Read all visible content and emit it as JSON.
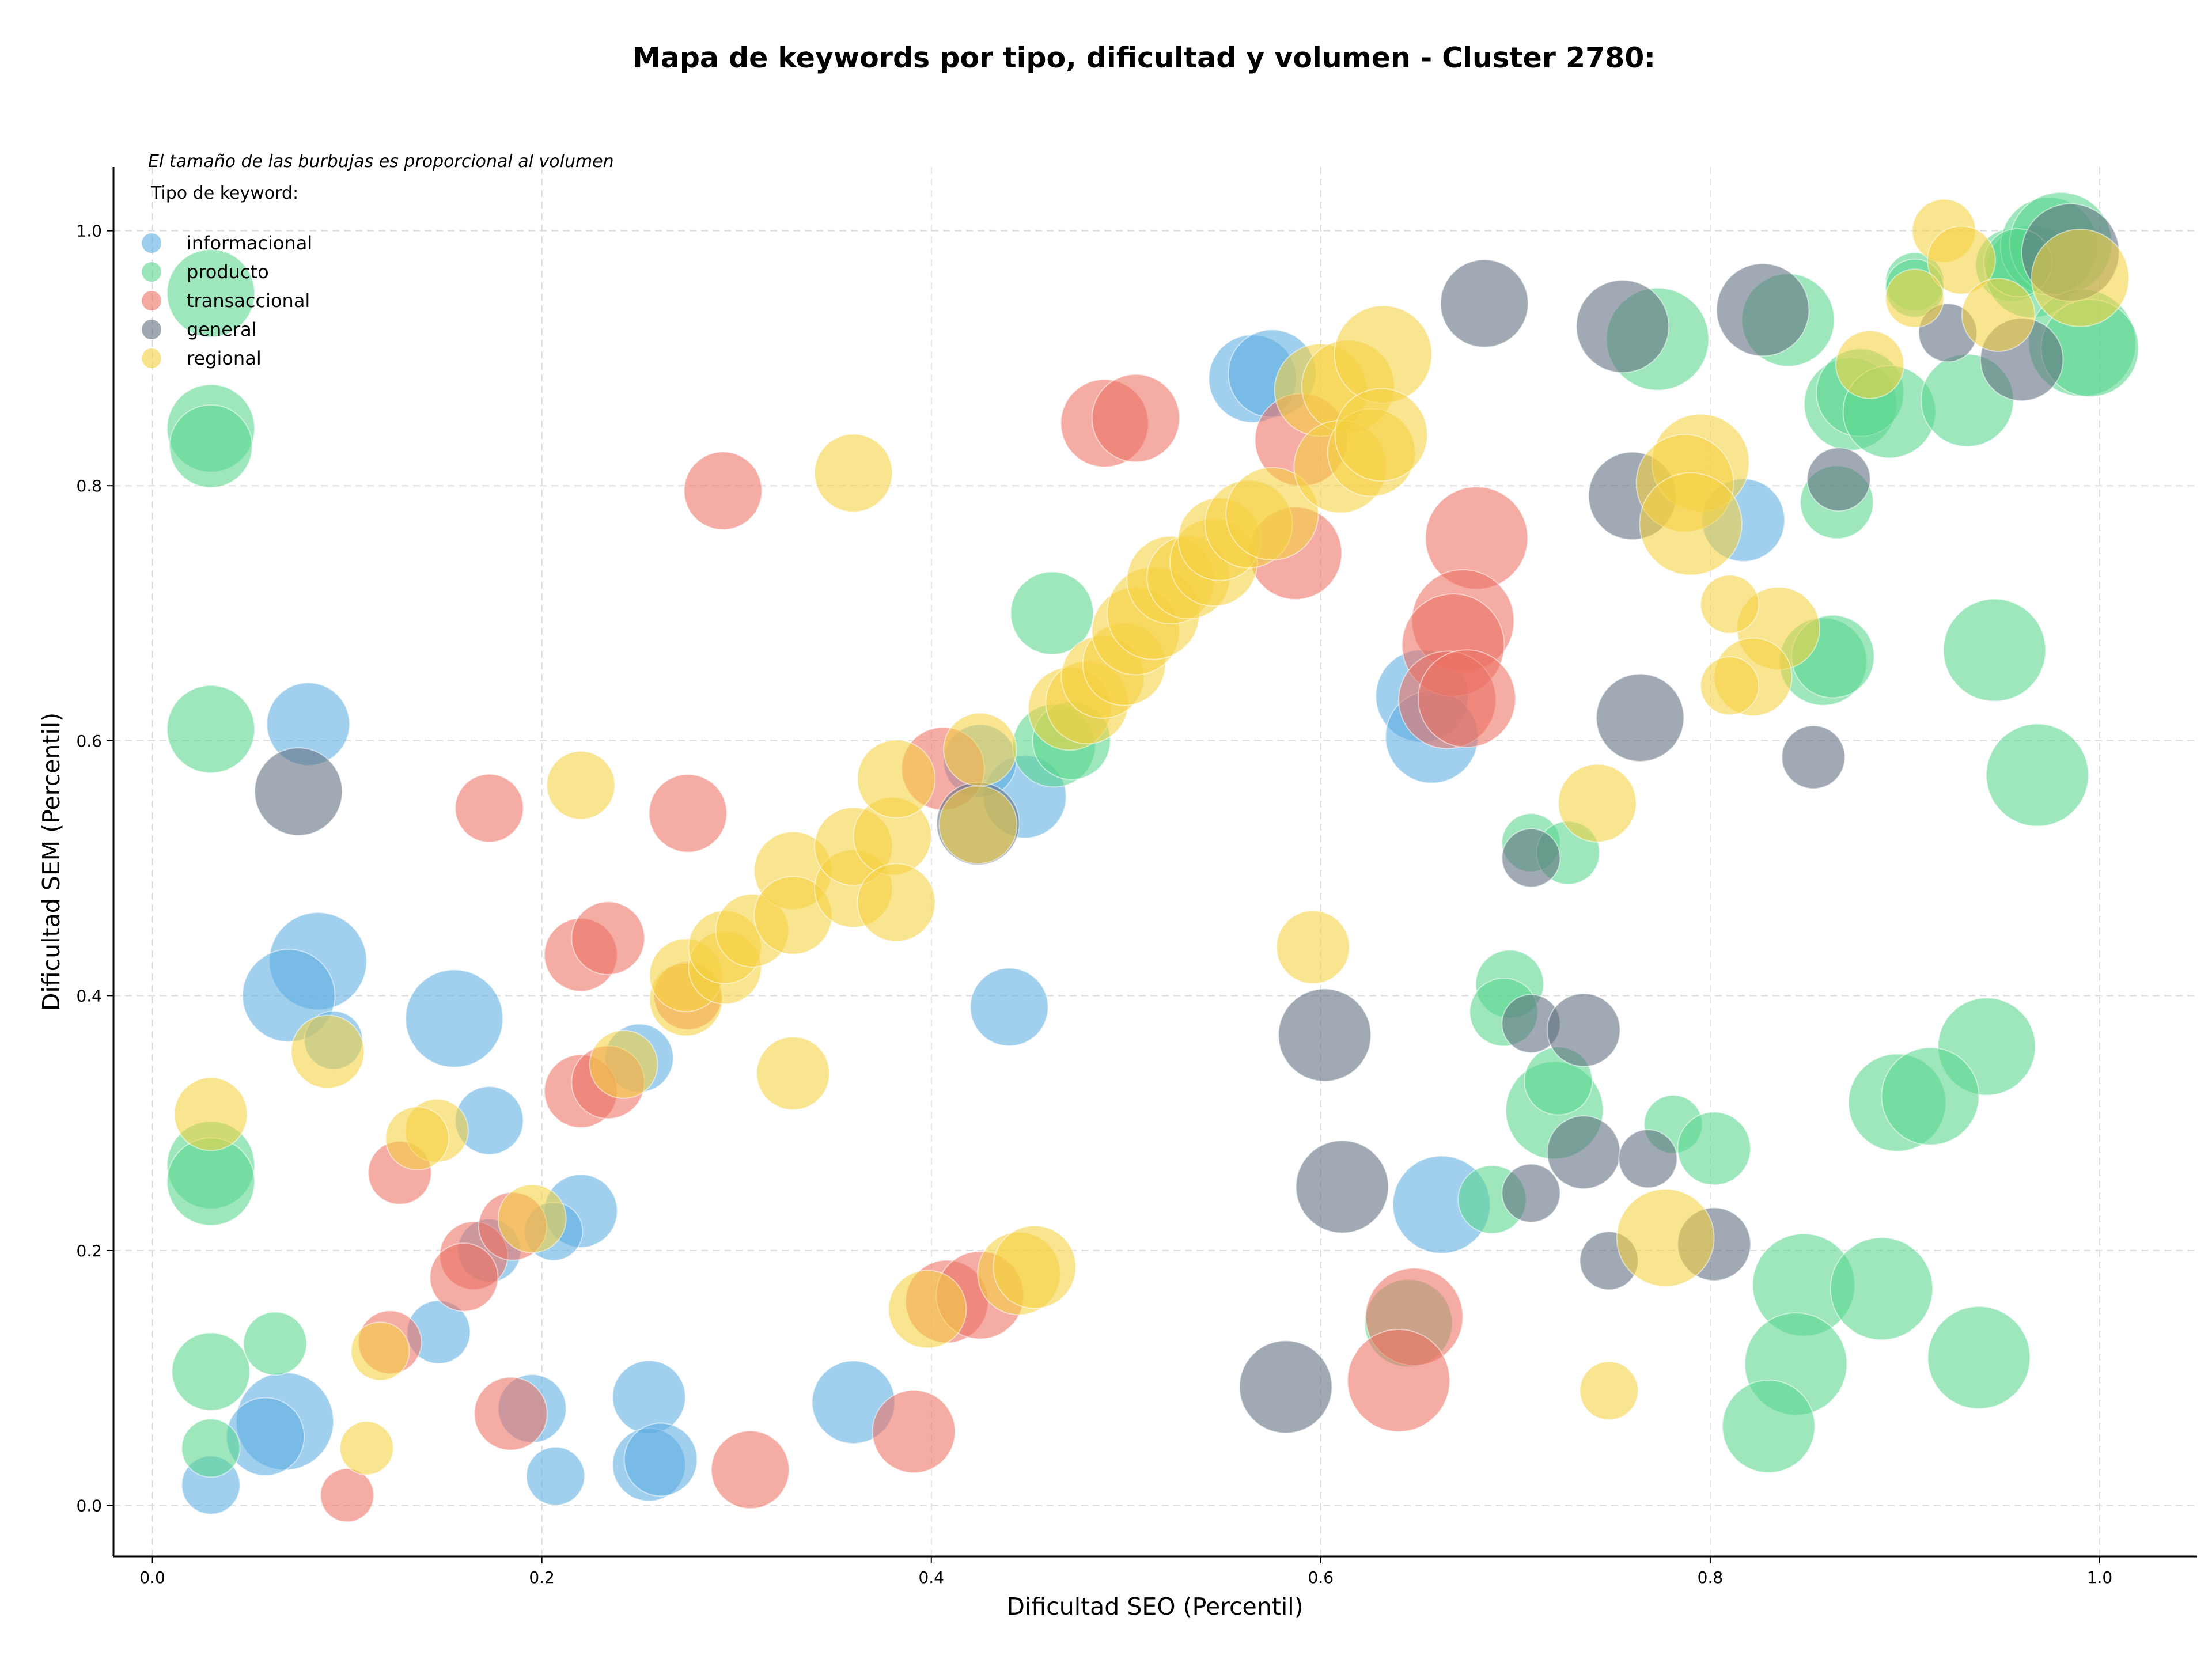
{
  "chart_data": {
    "type": "scatter",
    "title": "Mapa de keywords por tipo, dificultad y volumen - Cluster 2780:",
    "subtitle": "El tamaño de las burbujas es proporcional al volumen",
    "xlabel": "Dificultad SEO (Percentil)",
    "ylabel": "Dificultad SEM (Percentil)",
    "xlim": [
      -0.02,
      1.05
    ],
    "ylim": [
      -0.04,
      1.05
    ],
    "xticks": [
      "0.0",
      "0.2",
      "0.4",
      "0.6",
      "0.8",
      "1.0"
    ],
    "yticks": [
      "0.0",
      "0.2",
      "0.4",
      "0.6",
      "0.8",
      "1.0"
    ],
    "grid": true,
    "legend": {
      "title": "Tipo de keyword:",
      "placement": "top-left"
    },
    "series": [
      {
        "name": "informacional",
        "color": "#5DADE2",
        "points": [
          [
            0.08,
            0.613,
            0.55
          ],
          [
            0.085,
            0.427,
            0.7
          ],
          [
            0.07,
            0.4,
            0.65
          ],
          [
            0.155,
            0.382,
            0.7
          ],
          [
            0.093,
            0.365,
            0.3
          ],
          [
            0.173,
            0.302,
            0.4
          ],
          [
            0.22,
            0.231,
            0.45
          ],
          [
            0.206,
            0.215,
            0.3
          ],
          [
            0.173,
            0.2,
            0.35
          ],
          [
            0.147,
            0.136,
            0.35
          ],
          [
            0.068,
            0.066,
            0.7
          ],
          [
            0.058,
            0.054,
            0.5
          ],
          [
            0.03,
            0.016,
            0.3
          ],
          [
            0.195,
            0.076,
            0.4
          ],
          [
            0.207,
            0.023,
            0.3
          ],
          [
            0.255,
            0.085,
            0.45
          ],
          [
            0.255,
            0.032,
            0.45
          ],
          [
            0.261,
            0.036,
            0.45
          ],
          [
            0.36,
            0.081,
            0.55
          ],
          [
            0.25,
            0.351,
            0.4
          ],
          [
            0.44,
            0.391,
            0.5
          ],
          [
            0.448,
            0.556,
            0.55
          ],
          [
            0.425,
            0.584,
            0.45
          ],
          [
            0.565,
            0.884,
            0.6
          ],
          [
            0.575,
            0.888,
            0.6
          ],
          [
            0.652,
            0.635,
            0.65
          ],
          [
            0.657,
            0.603,
            0.65
          ],
          [
            0.662,
            0.236,
            0.7
          ],
          [
            0.817,
            0.773,
            0.55
          ]
        ]
      },
      {
        "name": "producto",
        "color": "#58D68D",
        "points": [
          [
            0.03,
            0.951,
            0.6
          ],
          [
            0.03,
            0.845,
            0.6
          ],
          [
            0.03,
            0.831,
            0.55
          ],
          [
            0.03,
            0.609,
            0.6
          ],
          [
            0.03,
            0.267,
            0.6
          ],
          [
            0.03,
            0.254,
            0.6
          ],
          [
            0.03,
            0.105,
            0.5
          ],
          [
            0.03,
            0.045,
            0.3
          ],
          [
            0.063,
            0.127,
            0.35
          ],
          [
            0.462,
            0.7,
            0.55
          ],
          [
            0.463,
            0.596,
            0.55
          ],
          [
            0.472,
            0.6,
            0.5
          ],
          [
            0.708,
            0.52,
            0.3
          ],
          [
            0.727,
            0.512,
            0.35
          ],
          [
            0.697,
            0.409,
            0.4
          ],
          [
            0.694,
            0.387,
            0.4
          ],
          [
            0.72,
            0.31,
            0.7
          ],
          [
            0.722,
            0.333,
            0.4
          ],
          [
            0.781,
            0.299,
            0.3
          ],
          [
            0.802,
            0.28,
            0.45
          ],
          [
            0.688,
            0.24,
            0.4
          ],
          [
            0.645,
            0.143,
            0.6
          ],
          [
            0.773,
            0.915,
            0.75
          ],
          [
            0.84,
            0.93,
            0.65
          ],
          [
            0.872,
            0.864,
            0.65
          ],
          [
            0.877,
            0.873,
            0.6
          ],
          [
            0.892,
            0.858,
            0.65
          ],
          [
            0.865,
            0.787,
            0.45
          ],
          [
            0.932,
            0.867,
            0.65
          ],
          [
            0.858,
            0.662,
            0.6
          ],
          [
            0.863,
            0.666,
            0.55
          ],
          [
            0.946,
            0.671,
            0.75
          ],
          [
            0.968,
            0.573,
            0.75
          ],
          [
            0.942,
            0.36,
            0.7
          ],
          [
            0.896,
            0.316,
            0.7
          ],
          [
            0.913,
            0.321,
            0.7
          ],
          [
            0.848,
            0.173,
            0.75
          ],
          [
            0.888,
            0.17,
            0.75
          ],
          [
            0.844,
            0.111,
            0.75
          ],
          [
            0.938,
            0.116,
            0.75
          ],
          [
            0.83,
            0.062,
            0.65
          ],
          [
            0.955,
            0.973,
            0.45
          ],
          [
            0.965,
            0.968,
            0.65
          ],
          [
            0.974,
            0.988,
            0.7
          ],
          [
            0.98,
            0.99,
            0.75
          ],
          [
            0.991,
            0.912,
            0.8
          ],
          [
            0.995,
            0.908,
            0.7
          ],
          [
            0.905,
            0.96,
            0.3
          ],
          [
            0.905,
            0.955,
            0.3
          ],
          [
            0.958,
            0.975,
            0.4
          ]
        ]
      },
      {
        "name": "transaccional",
        "color": "#EC7063",
        "points": [
          [
            0.293,
            0.796,
            0.5
          ],
          [
            0.173,
            0.547,
            0.4
          ],
          [
            0.275,
            0.543,
            0.5
          ],
          [
            0.22,
            0.432,
            0.45
          ],
          [
            0.234,
            0.445,
            0.45
          ],
          [
            0.22,
            0.325,
            0.45
          ],
          [
            0.234,
            0.332,
            0.45
          ],
          [
            0.127,
            0.261,
            0.35
          ],
          [
            0.165,
            0.196,
            0.4
          ],
          [
            0.16,
            0.179,
            0.4
          ],
          [
            0.185,
            0.219,
            0.4
          ],
          [
            0.122,
            0.128,
            0.35
          ],
          [
            0.184,
            0.072,
            0.45
          ],
          [
            0.1,
            0.008,
            0.25
          ],
          [
            0.307,
            0.028,
            0.5
          ],
          [
            0.391,
            0.058,
            0.55
          ],
          [
            0.408,
            0.16,
            0.55
          ],
          [
            0.425,
            0.165,
            0.6
          ],
          [
            0.406,
            0.578,
            0.55
          ],
          [
            0.489,
            0.849,
            0.6
          ],
          [
            0.505,
            0.853,
            0.6
          ],
          [
            0.59,
            0.836,
            0.65
          ],
          [
            0.587,
            0.747,
            0.65
          ],
          [
            0.68,
            0.759,
            0.75
          ],
          [
            0.673,
            0.694,
            0.75
          ],
          [
            0.668,
            0.675,
            0.75
          ],
          [
            0.665,
            0.632,
            0.7
          ],
          [
            0.675,
            0.633,
            0.7
          ],
          [
            0.648,
            0.148,
            0.7
          ],
          [
            0.64,
            0.098,
            0.75
          ],
          [
            0.275,
            0.4,
            0.4
          ]
        ]
      },
      {
        "name": "general",
        "color": "#5D6D7E",
        "points": [
          [
            0.075,
            0.56,
            0.6
          ],
          [
            0.424,
            0.535,
            0.55
          ],
          [
            0.684,
            0.943,
            0.6
          ],
          [
            0.755,
            0.925,
            0.65
          ],
          [
            0.76,
            0.792,
            0.6
          ],
          [
            0.827,
            0.938,
            0.65
          ],
          [
            0.866,
            0.805,
            0.35
          ],
          [
            0.922,
            0.92,
            0.3
          ],
          [
            0.96,
            0.899,
            0.55
          ],
          [
            0.985,
            0.983,
            0.7
          ],
          [
            0.764,
            0.618,
            0.6
          ],
          [
            0.853,
            0.587,
            0.35
          ],
          [
            0.708,
            0.508,
            0.3
          ],
          [
            0.708,
            0.378,
            0.3
          ],
          [
            0.735,
            0.373,
            0.45
          ],
          [
            0.602,
            0.369,
            0.65
          ],
          [
            0.735,
            0.277,
            0.45
          ],
          [
            0.768,
            0.272,
            0.3
          ],
          [
            0.611,
            0.25,
            0.65
          ],
          [
            0.708,
            0.245,
            0.3
          ],
          [
            0.802,
            0.205,
            0.45
          ],
          [
            0.748,
            0.192,
            0.3
          ],
          [
            0.582,
            0.093,
            0.65
          ]
        ]
      },
      {
        "name": "regional",
        "color": "#F4D03F",
        "points": [
          [
            0.36,
            0.81,
            0.5
          ],
          [
            0.22,
            0.565,
            0.4
          ],
          [
            0.09,
            0.356,
            0.45
          ],
          [
            0.03,
            0.307,
            0.45
          ],
          [
            0.146,
            0.294,
            0.35
          ],
          [
            0.136,
            0.288,
            0.35
          ],
          [
            0.117,
            0.121,
            0.3
          ],
          [
            0.11,
            0.045,
            0.25
          ],
          [
            0.195,
            0.225,
            0.4
          ],
          [
            0.242,
            0.346,
            0.4
          ],
          [
            0.274,
            0.397,
            0.45
          ],
          [
            0.274,
            0.416,
            0.45
          ],
          [
            0.294,
            0.422,
            0.45
          ],
          [
            0.294,
            0.438,
            0.45
          ],
          [
            0.308,
            0.451,
            0.45
          ],
          [
            0.329,
            0.498,
            0.5
          ],
          [
            0.329,
            0.463,
            0.5
          ],
          [
            0.36,
            0.484,
            0.5
          ],
          [
            0.36,
            0.517,
            0.5
          ],
          [
            0.38,
            0.525,
            0.5
          ],
          [
            0.382,
            0.473,
            0.5
          ],
          [
            0.382,
            0.57,
            0.5
          ],
          [
            0.425,
            0.593,
            0.45
          ],
          [
            0.424,
            0.534,
            0.5
          ],
          [
            0.329,
            0.339,
            0.45
          ],
          [
            0.398,
            0.154,
            0.5
          ],
          [
            0.445,
            0.182,
            0.55
          ],
          [
            0.453,
            0.187,
            0.55
          ],
          [
            0.596,
            0.438,
            0.45
          ],
          [
            0.742,
            0.551,
            0.5
          ],
          [
            0.471,
            0.625,
            0.55
          ],
          [
            0.48,
            0.63,
            0.55
          ],
          [
            0.488,
            0.65,
            0.55
          ],
          [
            0.499,
            0.66,
            0.55
          ],
          [
            0.505,
            0.686,
            0.6
          ],
          [
            0.514,
            0.7,
            0.65
          ],
          [
            0.523,
            0.726,
            0.6
          ],
          [
            0.532,
            0.728,
            0.55
          ],
          [
            0.545,
            0.74,
            0.6
          ],
          [
            0.548,
            0.758,
            0.55
          ],
          [
            0.563,
            0.77,
            0.6
          ],
          [
            0.575,
            0.778,
            0.65
          ],
          [
            0.6,
            0.875,
            0.65
          ],
          [
            0.614,
            0.878,
            0.65
          ],
          [
            0.632,
            0.903,
            0.7
          ],
          [
            0.61,
            0.815,
            0.65
          ],
          [
            0.626,
            0.826,
            0.6
          ],
          [
            0.631,
            0.84,
            0.65
          ],
          [
            0.795,
            0.818,
            0.7
          ],
          [
            0.787,
            0.802,
            0.7
          ],
          [
            0.79,
            0.77,
            0.75
          ],
          [
            0.882,
            0.895,
            0.4
          ],
          [
            0.835,
            0.688,
            0.55
          ],
          [
            0.822,
            0.65,
            0.5
          ],
          [
            0.81,
            0.707,
            0.3
          ],
          [
            0.81,
            0.643,
            0.3
          ],
          [
            0.777,
            0.21,
            0.7
          ],
          [
            0.748,
            0.09,
            0.3
          ],
          [
            0.92,
            1.0,
            0.35
          ],
          [
            0.929,
            0.977,
            0.4
          ],
          [
            0.905,
            0.947,
            0.3
          ],
          [
            0.948,
            0.934,
            0.45
          ],
          [
            0.99,
            0.963,
            0.7
          ]
        ]
      }
    ]
  }
}
